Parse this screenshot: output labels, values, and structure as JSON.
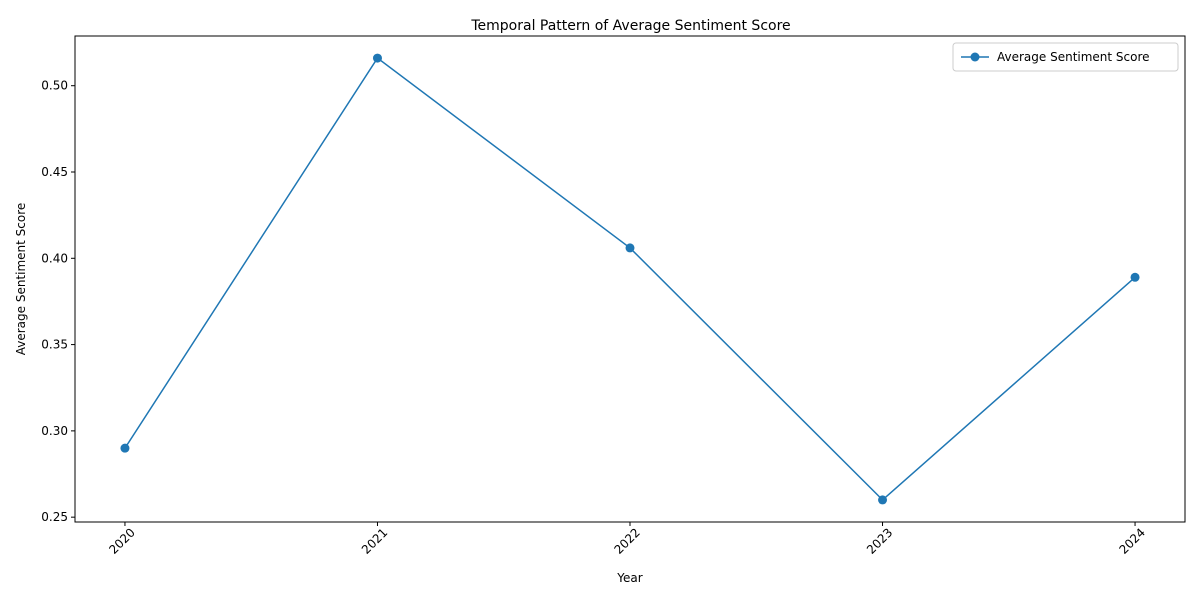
{
  "chart_data": {
    "type": "line",
    "title": "Temporal Pattern of Average Sentiment Score",
    "xlabel": "Year",
    "ylabel": "Average Sentiment Score",
    "categories": [
      "2020",
      "2021",
      "2022",
      "2023",
      "2024"
    ],
    "series": [
      {
        "name": "Average Sentiment Score",
        "values": [
          0.29,
          0.516,
          0.406,
          0.26,
          0.389
        ],
        "color": "#1f77b4"
      }
    ],
    "ylim": [
      0.2472,
      0.5288
    ],
    "yticks": [
      0.25,
      0.3,
      0.35,
      0.4,
      0.45,
      0.5
    ],
    "ytick_labels": [
      "0.25",
      "0.30",
      "0.35",
      "0.40",
      "0.45",
      "0.50"
    ],
    "grid": false,
    "legend_position": "top-right",
    "xtick_rotation": 45
  }
}
